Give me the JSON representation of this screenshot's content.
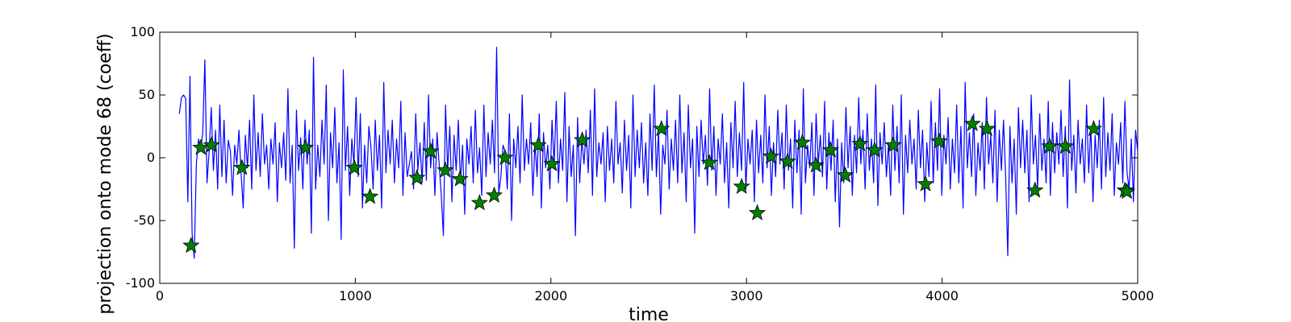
{
  "chart_data": {
    "type": "line",
    "title": "",
    "xlabel": "time",
    "ylabel": "projection onto mode 68 (coeff)",
    "xlim": [
      0,
      5000
    ],
    "ylim": [
      -100,
      100
    ],
    "xticks": [
      0,
      1000,
      2000,
      3000,
      4000,
      5000
    ],
    "yticks": [
      -100,
      -50,
      0,
      50,
      100
    ],
    "grid": false,
    "legend": "none",
    "line_color": "#0000ff",
    "marker_color": "#008000",
    "series": [
      {
        "type": "line",
        "x_start": 100,
        "x_end": 5000,
        "values": [
          35,
          48,
          50,
          47,
          -35,
          65,
          -60,
          -80,
          -5,
          15,
          6,
          20,
          78,
          -20,
          5,
          40,
          -10,
          22,
          -25,
          42,
          -15,
          30,
          -20,
          14,
          5,
          -30,
          10,
          -5,
          22,
          -12,
          -40,
          18,
          -8,
          30,
          -25,
          50,
          -10,
          20,
          -15,
          35,
          -5,
          10,
          -25,
          15,
          -5,
          28,
          -35,
          12,
          -8,
          20,
          -18,
          55,
          -20,
          10,
          -72,
          38,
          -10,
          16,
          -25,
          30,
          -5,
          22,
          -60,
          80,
          -25,
          10,
          -15,
          30,
          -5,
          58,
          -50,
          20,
          -8,
          40,
          -20,
          12,
          -65,
          70,
          -10,
          25,
          -30,
          15,
          -5,
          48,
          -15,
          35,
          -40,
          10,
          -20,
          25,
          8,
          -25,
          30,
          -10,
          18,
          -40,
          60,
          -12,
          22,
          -5,
          30,
          -20,
          15,
          -8,
          45,
          -30,
          20,
          -15,
          -5,
          5,
          -25,
          35,
          -10,
          12,
          -20,
          28,
          -18,
          50,
          -8,
          15,
          -30,
          20,
          -5,
          -30,
          -62,
          42,
          -10,
          25,
          -35,
          18,
          -10,
          30,
          -20,
          10,
          -45,
          15,
          -5,
          25,
          -20,
          38,
          -12,
          8,
          -30,
          42,
          -15,
          20,
          -5,
          30,
          -12,
          88,
          -28,
          -15,
          10,
          5,
          -25,
          35,
          -50,
          15,
          -8,
          25,
          -20,
          50,
          -10,
          15,
          -5,
          28,
          -30,
          12,
          -15,
          35,
          -40,
          20,
          -8,
          10,
          -25,
          30,
          -5,
          45,
          -20,
          15,
          -10,
          52,
          -35,
          25,
          -15,
          10,
          -62,
          32,
          -20,
          15,
          -5,
          22,
          -12,
          38,
          -30,
          55,
          -15,
          12,
          -5,
          20,
          -35,
          25,
          -10,
          15,
          -20,
          45,
          -5,
          12,
          -28,
          30,
          -10,
          18,
          -40,
          50,
          -15,
          22,
          -8,
          28,
          -20,
          12,
          -30,
          35,
          -10,
          58,
          -15,
          22,
          -45,
          10,
          -5,
          38,
          -25,
          15,
          -10,
          30,
          -20,
          50,
          -12,
          20,
          -35,
          42,
          -8,
          15,
          -60,
          25,
          -15,
          30,
          -5,
          18,
          -22,
          55,
          -10,
          25,
          -30,
          15,
          -5,
          35,
          -20,
          12,
          -40,
          28,
          -8,
          45,
          -15,
          20,
          -10,
          60,
          -25,
          15,
          -5,
          22,
          -35,
          30,
          -12,
          18,
          -20,
          50,
          -8,
          25,
          -30,
          12,
          -15,
          38,
          -5,
          20,
          -25,
          42,
          -10,
          15,
          -40,
          30,
          -12,
          22,
          -45,
          55,
          -20,
          10,
          -8,
          28,
          -30,
          35,
          -5,
          18,
          -15,
          45,
          -25,
          20,
          -10,
          30,
          -35,
          15,
          -55,
          12,
          -20,
          40,
          -8,
          25,
          -30,
          18,
          -12,
          48,
          -5,
          22,
          -25,
          35,
          -10,
          15,
          -20,
          58,
          -38,
          20,
          -5,
          28,
          -15,
          12,
          -30,
          42,
          -10,
          25,
          -20,
          50,
          -45,
          18,
          -12,
          30,
          -5,
          15,
          -25,
          38,
          -8,
          22,
          -35,
          12,
          -15,
          45,
          -20,
          28,
          -10,
          55,
          -30,
          18,
          -5,
          32,
          -25,
          15,
          -12,
          42,
          -20,
          25,
          -40,
          60,
          -8,
          20,
          -15,
          35,
          -30,
          12,
          -10,
          28,
          -25,
          48,
          -5,
          18,
          -20,
          38,
          -35,
          22,
          -10,
          30,
          -15,
          -78,
          25,
          -20,
          15,
          -45,
          40,
          -8,
          30,
          -12,
          22,
          -35,
          50,
          -5,
          18,
          -25,
          35,
          -10,
          15,
          -20,
          45,
          -30,
          28,
          -12,
          20,
          -5,
          38,
          -15,
          25,
          -40,
          62,
          -10,
          18,
          -28,
          30,
          -5,
          15,
          -20,
          42,
          -12,
          25,
          -35,
          18,
          -8,
          30,
          -25,
          48,
          -15,
          20,
          -10,
          35,
          -30,
          12,
          -5,
          28,
          -20,
          45,
          -12,
          -25,
          15,
          -35,
          22,
          5
        ]
      },
      {
        "type": "scatter",
        "marker": "star",
        "x": [
          160,
          210,
          265,
          420,
          745,
          995,
          1075,
          1315,
          1385,
          1460,
          1535,
          1635,
          1710,
          1765,
          1935,
          2005,
          2160,
          2565,
          2810,
          2975,
          3055,
          3125,
          3210,
          3285,
          3355,
          3430,
          3505,
          3580,
          3655,
          3750,
          3915,
          3985,
          4155,
          4230,
          4475,
          4550,
          4630,
          4775,
          4935,
          4945
        ],
        "y": [
          -70,
          8,
          10,
          -8,
          8,
          -8,
          -31,
          -16,
          5,
          -10,
          -17,
          -36,
          -30,
          0,
          10,
          -5,
          14,
          23,
          -4,
          -23,
          -44,
          1,
          -3,
          12,
          -6,
          6,
          -14,
          11,
          6,
          10,
          -21,
          13,
          27,
          23,
          -26,
          9,
          9,
          23,
          -26,
          -27
        ]
      }
    ]
  }
}
